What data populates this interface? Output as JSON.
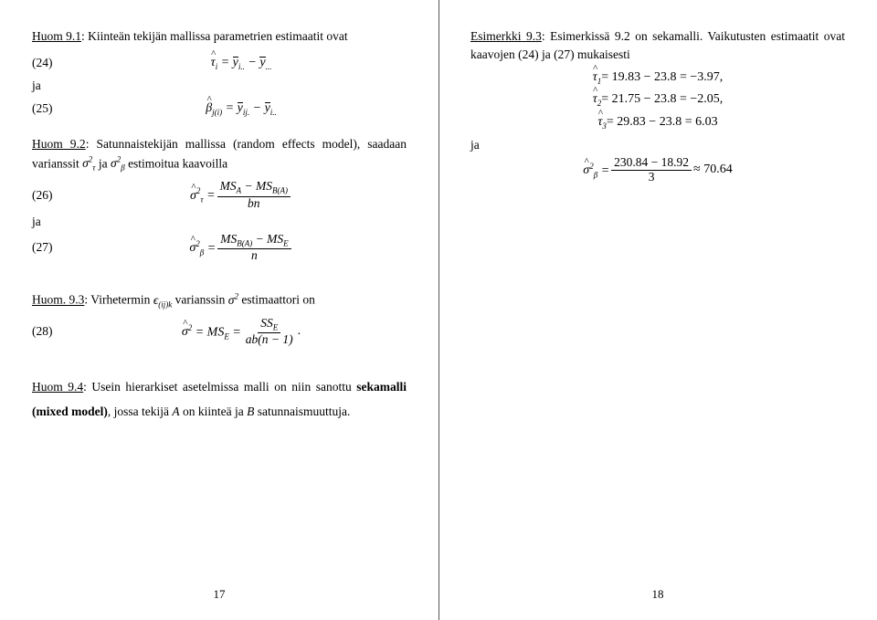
{
  "left": {
    "huom91_label": "Huom 9.1",
    "huom91_text": ": Kiinteän tekijän mallissa parametrien estimaatit ovat",
    "eq24_num": "(24)",
    "ja1": "ja",
    "eq25_num": "(25)",
    "huom92_label": "Huom 9.2",
    "huom92_text_a": ": Satunnaistekijän mallissa (random effects model), saadaan varianssit ",
    "huom92_text_b": " estimoitua kaavoilla",
    "eq26_num": "(26)",
    "ja2": "ja",
    "eq27_num": "(27)",
    "huom93_label": "Huom. 9.3",
    "huom93_text_a": ": Virhetermin ",
    "huom93_text_b": " varianssin ",
    "huom93_text_c": " estimaattori on",
    "eq28_num": "(28)",
    "huom94_label": "Huom 9.4",
    "huom94_text": ": Usein hierarkiset asetelmissa malli on niin sanottu ",
    "sekamalli": "sekamalli (mixed model)",
    "huom94_tail": ", jossa tekijä ",
    "huom94_tail2": " on kiinteä ja ",
    "huom94_tail3": " satunnaismuuttuja.",
    "pagenum": "17"
  },
  "right": {
    "esim_label": "Esimerkki 9.3",
    "esim_text": ": Esimerkissä 9.2 on sekamalli. Vaikutusten estimaatit ovat kaavojen (24) ja (27) mukaisesti",
    "tau1": " = 19.83 − 23.8 = −3.97,",
    "tau2": " = 21.75 − 23.8 = −2.05,",
    "tau3": " = 29.83 − 23.8 = 6.03",
    "ja": "ja",
    "frac_num": "230.84 − 18.92",
    "frac_den": "3",
    "approx": " ≈ 70.64",
    "pagenum": "18"
  }
}
